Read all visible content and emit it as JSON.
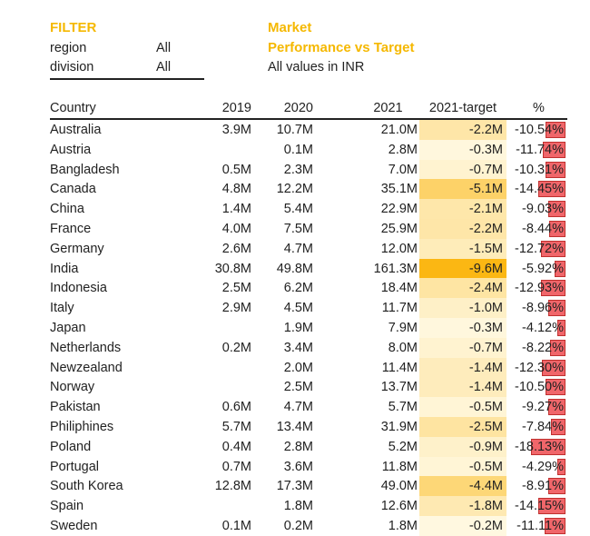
{
  "filter": {
    "title": "FILTER",
    "fields": [
      {
        "label": "region",
        "value": "All"
      },
      {
        "label": "division",
        "value": "All"
      }
    ]
  },
  "report": {
    "title_line1": "Market",
    "title_line2": "Performance vs Target",
    "note": "All values in INR"
  },
  "table": {
    "headers": {
      "country": "Country",
      "y2019": "2019",
      "y2020": "2020",
      "y2021": "2021",
      "target": "2021-target",
      "pct": "%"
    },
    "rows": [
      {
        "country": "Australia",
        "y2019": "3.9M",
        "y2020": "10.7M",
        "y2021": "21.0M",
        "target": "-2.2M",
        "target_value": -2.2,
        "pct": "-10.54%",
        "pct_value": -10.54
      },
      {
        "country": "Austria",
        "y2019": "",
        "y2020": "0.1M",
        "y2021": "2.8M",
        "target": "-0.3M",
        "target_value": -0.3,
        "pct": "-11.74%",
        "pct_value": -11.74
      },
      {
        "country": "Bangladesh",
        "y2019": "0.5M",
        "y2020": "2.3M",
        "y2021": "7.0M",
        "target": "-0.7M",
        "target_value": -0.7,
        "pct": "-10.31%",
        "pct_value": -10.31
      },
      {
        "country": "Canada",
        "y2019": "4.8M",
        "y2020": "12.2M",
        "y2021": "35.1M",
        "target": "-5.1M",
        "target_value": -5.1,
        "pct": "-14.45%",
        "pct_value": -14.45
      },
      {
        "country": "China",
        "y2019": "1.4M",
        "y2020": "5.4M",
        "y2021": "22.9M",
        "target": "-2.1M",
        "target_value": -2.1,
        "pct": "-9.03%",
        "pct_value": -9.03
      },
      {
        "country": "France",
        "y2019": "4.0M",
        "y2020": "7.5M",
        "y2021": "25.9M",
        "target": "-2.2M",
        "target_value": -2.2,
        "pct": "-8.44%",
        "pct_value": -8.44
      },
      {
        "country": "Germany",
        "y2019": "2.6M",
        "y2020": "4.7M",
        "y2021": "12.0M",
        "target": "-1.5M",
        "target_value": -1.5,
        "pct": "-12.72%",
        "pct_value": -12.72
      },
      {
        "country": "India",
        "y2019": "30.8M",
        "y2020": "49.8M",
        "y2021": "161.3M",
        "target": "-9.6M",
        "target_value": -9.6,
        "pct": "-5.92%",
        "pct_value": -5.92
      },
      {
        "country": "Indonesia",
        "y2019": "2.5M",
        "y2020": "6.2M",
        "y2021": "18.4M",
        "target": "-2.4M",
        "target_value": -2.4,
        "pct": "-12.93%",
        "pct_value": -12.93
      },
      {
        "country": "Italy",
        "y2019": "2.9M",
        "y2020": "4.5M",
        "y2021": "11.7M",
        "target": "-1.0M",
        "target_value": -1.0,
        "pct": "-8.96%",
        "pct_value": -8.96
      },
      {
        "country": "Japan",
        "y2019": "",
        "y2020": "1.9M",
        "y2021": "7.9M",
        "target": "-0.3M",
        "target_value": -0.3,
        "pct": "-4.12%",
        "pct_value": -4.12
      },
      {
        "country": "Netherlands",
        "y2019": "0.2M",
        "y2020": "3.4M",
        "y2021": "8.0M",
        "target": "-0.7M",
        "target_value": -0.7,
        "pct": "-8.22%",
        "pct_value": -8.22
      },
      {
        "country": "Newzealand",
        "y2019": "",
        "y2020": "2.0M",
        "y2021": "11.4M",
        "target": "-1.4M",
        "target_value": -1.4,
        "pct": "-12.30%",
        "pct_value": -12.3
      },
      {
        "country": "Norway",
        "y2019": "",
        "y2020": "2.5M",
        "y2021": "13.7M",
        "target": "-1.4M",
        "target_value": -1.4,
        "pct": "-10.50%",
        "pct_value": -10.5
      },
      {
        "country": "Pakistan",
        "y2019": "0.6M",
        "y2020": "4.7M",
        "y2021": "5.7M",
        "target": "-0.5M",
        "target_value": -0.5,
        "pct": "-9.27%",
        "pct_value": -9.27
      },
      {
        "country": "Philiphines",
        "y2019": "5.7M",
        "y2020": "13.4M",
        "y2021": "31.9M",
        "target": "-2.5M",
        "target_value": -2.5,
        "pct": "-7.84%",
        "pct_value": -7.84
      },
      {
        "country": "Poland",
        "y2019": "0.4M",
        "y2020": "2.8M",
        "y2021": "5.2M",
        "target": "-0.9M",
        "target_value": -0.9,
        "pct": "-18.13%",
        "pct_value": -18.13
      },
      {
        "country": "Portugal",
        "y2019": "0.7M",
        "y2020": "3.6M",
        "y2021": "11.8M",
        "target": "-0.5M",
        "target_value": -0.5,
        "pct": "-4.29%",
        "pct_value": -4.29
      },
      {
        "country": "South Korea",
        "y2019": "12.8M",
        "y2020": "17.3M",
        "y2021": "49.0M",
        "target": "-4.4M",
        "target_value": -4.4,
        "pct": "-8.91%",
        "pct_value": -8.91
      },
      {
        "country": "Spain",
        "y2019": "",
        "y2020": "1.8M",
        "y2021": "12.6M",
        "target": "-1.8M",
        "target_value": -1.8,
        "pct": "-14.15%",
        "pct_value": -14.15
      },
      {
        "country": "Sweden",
        "y2019": "0.1M",
        "y2020": "0.2M",
        "y2021": "1.8M",
        "target": "-0.2M",
        "target_value": -0.2,
        "pct": "-11.11%",
        "pct_value": -11.11
      }
    ]
  },
  "colors": {
    "accent": "#f5b800",
    "heat_low": "#fffbea",
    "heat_high": "#fbb713",
    "pct_bar": "#f0666a",
    "pct_bar_border": "#c0302e"
  }
}
